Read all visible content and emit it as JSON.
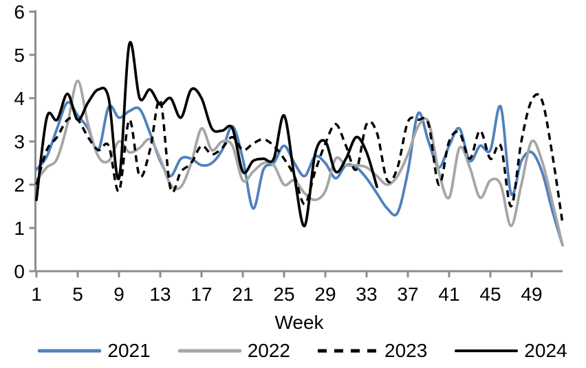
{
  "chart_data": {
    "type": "line",
    "title": "",
    "xlabel": "Week",
    "ylabel": "",
    "xlim": [
      1,
      52
    ],
    "ylim": [
      0,
      6
    ],
    "x_ticks": [
      1,
      5,
      9,
      13,
      17,
      21,
      25,
      29,
      33,
      37,
      41,
      45,
      49
    ],
    "y_ticks": [
      0,
      1,
      2,
      3,
      4,
      5,
      6
    ],
    "grid": false,
    "legend_position": "bottom",
    "axis_color": "#8C8C8C",
    "text_color": "#000000",
    "series": [
      {
        "name": "2021",
        "color": "#4F81BD",
        "style": "solid",
        "start_week": 1,
        "values": [
          2.35,
          2.65,
          3.3,
          3.9,
          3.6,
          3.3,
          2.8,
          3.8,
          3.55,
          3.7,
          3.75,
          3.2,
          2.55,
          2.2,
          2.6,
          2.6,
          2.45,
          2.5,
          2.8,
          3.35,
          2.6,
          1.45,
          2.35,
          2.5,
          2.9,
          2.5,
          2.2,
          2.65,
          2.5,
          2.15,
          2.45,
          2.4,
          2.15,
          1.8,
          1.45,
          1.35,
          2.3,
          3.65,
          3.0,
          2.4,
          2.9,
          3.3,
          2.55,
          2.9,
          2.8,
          3.8,
          1.8,
          2.55,
          2.75,
          2.3,
          1.4,
          0.6
        ]
      },
      {
        "name": "2022",
        "color": "#A6A6A6",
        "style": "solid",
        "start_week": 1,
        "values": [
          2.1,
          2.4,
          2.6,
          3.4,
          4.4,
          3.4,
          2.65,
          2.55,
          3.0,
          2.75,
          2.85,
          3.05,
          2.6,
          2.0,
          1.95,
          2.5,
          3.3,
          2.8,
          3.0,
          2.9,
          2.1,
          2.3,
          2.5,
          2.45,
          2.0,
          2.1,
          1.8,
          1.65,
          1.85,
          2.6,
          2.45,
          2.45,
          2.4,
          2.2,
          2.0,
          2.2,
          2.7,
          3.35,
          3.45,
          2.3,
          1.7,
          2.85,
          2.4,
          1.7,
          2.1,
          2.0,
          1.05,
          2.0,
          3.0,
          2.55,
          1.6,
          0.6
        ]
      },
      {
        "name": "2023",
        "color": "#000000",
        "style": "dashed",
        "start_week": 1,
        "values": [
          2.0,
          2.8,
          3.1,
          3.5,
          3.5,
          3.1,
          2.8,
          2.9,
          1.85,
          3.5,
          2.2,
          2.8,
          3.95,
          1.9,
          2.3,
          2.5,
          2.9,
          2.7,
          2.85,
          3.1,
          2.8,
          2.95,
          3.05,
          2.9,
          2.6,
          2.2,
          1.55,
          2.3,
          2.95,
          3.4,
          2.9,
          2.35,
          3.4,
          3.2,
          2.1,
          2.4,
          3.45,
          3.5,
          3.4,
          2.0,
          3.0,
          3.2,
          2.6,
          3.25,
          2.6,
          2.9,
          1.5,
          3.0,
          3.95,
          3.95,
          2.7,
          1.1
        ]
      },
      {
        "name": "2024",
        "color": "#000000",
        "style": "solid",
        "start_week": 1,
        "values": [
          1.65,
          3.55,
          3.5,
          4.1,
          3.5,
          3.9,
          4.2,
          4.0,
          2.15,
          5.25,
          4.0,
          4.2,
          3.85,
          4.0,
          3.55,
          4.2,
          4.0,
          3.3,
          3.25,
          3.3,
          2.3,
          2.55,
          2.6,
          2.6,
          3.6,
          2.2,
          1.05,
          2.7,
          3.0,
          2.3,
          2.6,
          3.1,
          2.75,
          1.95
        ]
      }
    ]
  }
}
